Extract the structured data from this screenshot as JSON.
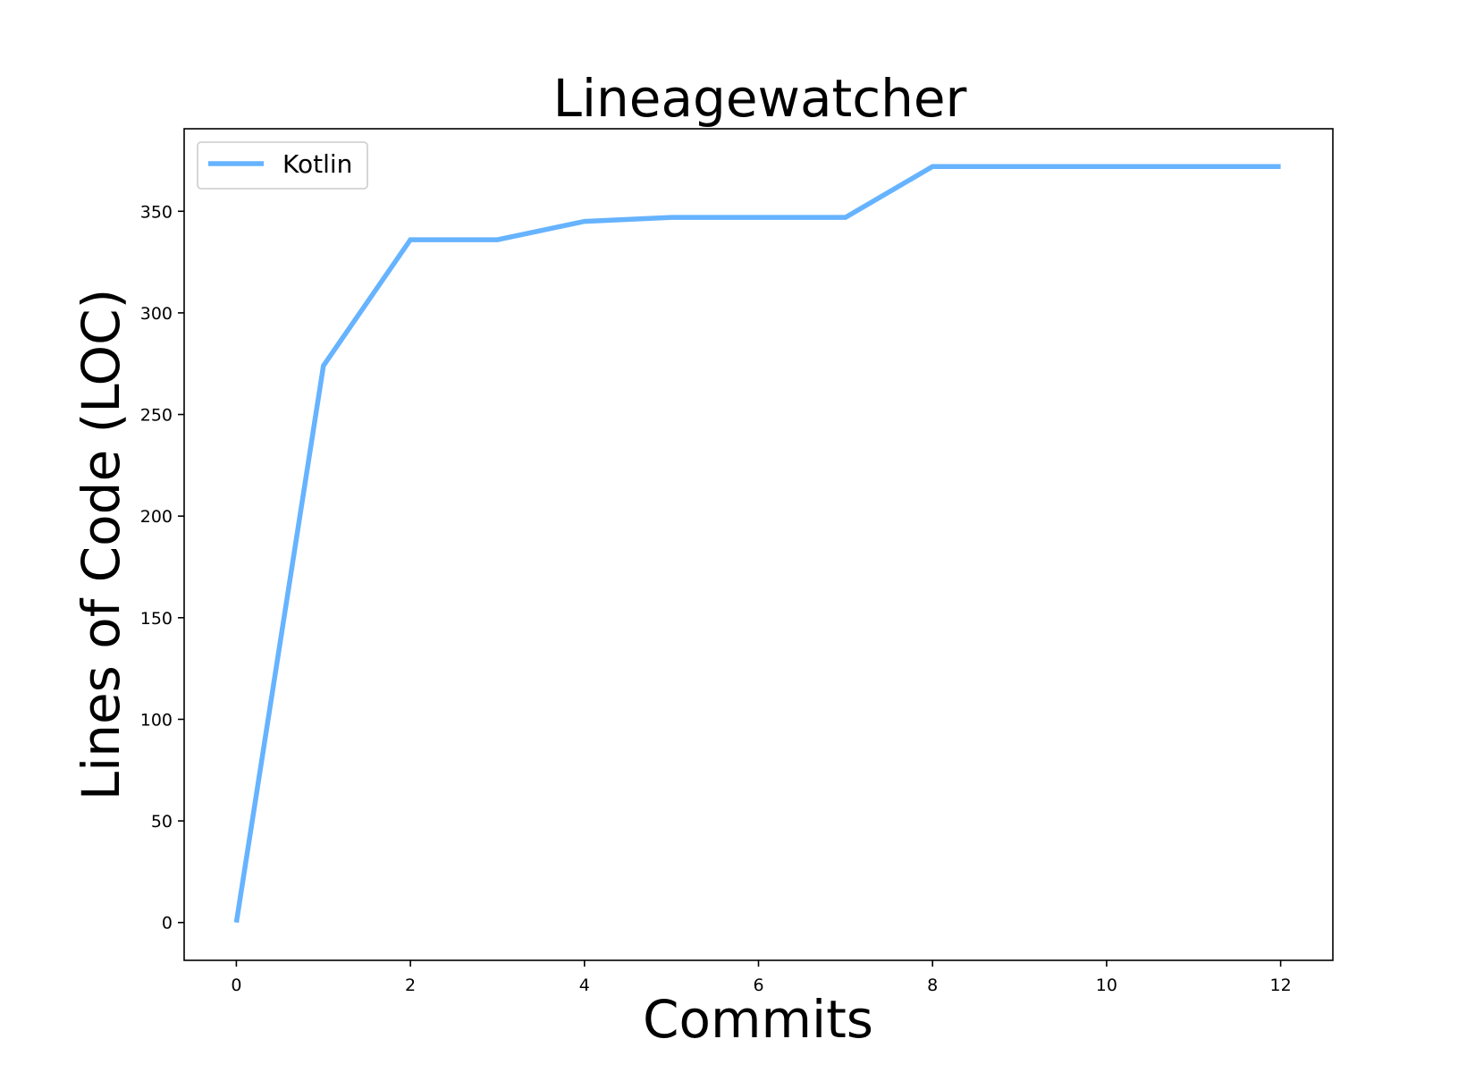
{
  "chart_data": {
    "type": "line",
    "title": "Lineagewatcher",
    "xlabel": "Commits",
    "ylabel": "Lines of Code (LOC)",
    "x": [
      0,
      1,
      2,
      3,
      4,
      5,
      6,
      7,
      8,
      9,
      10,
      11,
      12
    ],
    "series": [
      {
        "name": "Kotlin",
        "color": "#66b3ff",
        "values": [
          0,
          274,
          336,
          336,
          345,
          347,
          347,
          347,
          372,
          372,
          372,
          372,
          372
        ]
      }
    ],
    "xlim": [
      -0.6,
      12.6
    ],
    "ylim": [
      -18.6,
      390.6
    ],
    "xticks": [
      0,
      2,
      4,
      6,
      8,
      10,
      12
    ],
    "yticks": [
      0,
      50,
      100,
      150,
      200,
      250,
      300,
      350
    ],
    "grid": false,
    "legend_position": "upper left"
  }
}
